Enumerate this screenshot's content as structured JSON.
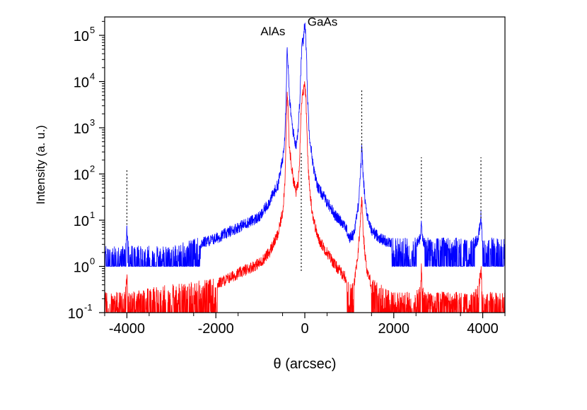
{
  "chart_data": {
    "type": "line",
    "title": "",
    "xlabel": "θ (arcsec)",
    "ylabel": "Intensity (a. u.)",
    "xlim": [
      -4500,
      4500
    ],
    "ylim": [
      0.1,
      250000
    ],
    "yscale": "log",
    "grid": false,
    "legend": "none",
    "x_ticks": [
      {
        "value": -4000,
        "label": "-4000"
      },
      {
        "value": -2000,
        "label": "-2000"
      },
      {
        "value": 0,
        "label": "0"
      },
      {
        "value": 2000,
        "label": "2000"
      },
      {
        "value": 4000,
        "label": "4000"
      }
    ],
    "y_ticks": [
      {
        "value": 0.1,
        "base": "10",
        "exp": "-1"
      },
      {
        "value": 1,
        "base": "10",
        "exp": "0"
      },
      {
        "value": 10,
        "base": "10",
        "exp": "1"
      },
      {
        "value": 100,
        "base": "10",
        "exp": "2"
      },
      {
        "value": 1000,
        "base": "10",
        "exp": "3"
      },
      {
        "value": 10000,
        "base": "10",
        "exp": "4"
      },
      {
        "value": 100000,
        "base": "10",
        "exp": "5"
      }
    ],
    "annotations": [
      {
        "text": "AlAs",
        "x": -400,
        "y": 100000
      },
      {
        "text": "GaAs",
        "x": 0,
        "y": 160000
      }
    ],
    "reference_lines": [
      {
        "x": -4000,
        "y_from": 8,
        "y_to": 130
      },
      {
        "x": -80,
        "y_from": 0.8,
        "y_to": 300
      },
      {
        "x": 1280,
        "y_from": 300,
        "y_to": 6500
      },
      {
        "x": 2620,
        "y_from": 11,
        "y_to": 230
      },
      {
        "x": 3960,
        "y_from": 11,
        "y_to": 230
      }
    ],
    "series": [
      {
        "color": "#0000ff",
        "baseline": 1,
        "noise_max": 3,
        "x": [
          -4500,
          -4100,
          -4050,
          -4020,
          -4000,
          -3980,
          -3950,
          -3000,
          -2000,
          -1500,
          -1000,
          -800,
          -600,
          -500,
          -450,
          -420,
          -400,
          -380,
          -350,
          -300,
          -250,
          -200,
          -150,
          -120,
          -100,
          -80,
          -60,
          -40,
          -20,
          0,
          20,
          40,
          60,
          100,
          150,
          200,
          300,
          500,
          700,
          900,
          1000,
          1100,
          1200,
          1250,
          1270,
          1280,
          1290,
          1310,
          1350,
          1400,
          1500,
          1700,
          2000,
          2500,
          2600,
          2620,
          2640,
          2700,
          3000,
          3800,
          3900,
          3940,
          3960,
          3980,
          4000,
          4100,
          4500
        ],
        "y": [
          2,
          2,
          2,
          3,
          7,
          3,
          2,
          2,
          4,
          7,
          12,
          25,
          60,
          200,
          700,
          5000,
          50000,
          30000,
          5000,
          1500,
          700,
          400,
          900,
          3000,
          8000,
          30000,
          80000,
          60000,
          120000,
          200000,
          100000,
          30000,
          5000,
          800,
          300,
          120,
          50,
          25,
          12,
          8,
          4,
          5,
          20,
          100,
          200,
          340,
          250,
          100,
          30,
          12,
          6,
          4,
          3,
          3,
          4,
          10,
          4,
          3,
          3,
          3,
          4,
          8,
          12,
          6,
          3,
          3,
          3
        ]
      },
      {
        "color": "#ff0000",
        "baseline": 0.1,
        "noise_max": 0.4,
        "x": [
          -4500,
          -4100,
          -4050,
          -4020,
          -4000,
          -3980,
          -3950,
          -3000,
          -2000,
          -1500,
          -1000,
          -800,
          -600,
          -500,
          -450,
          -420,
          -400,
          -380,
          -350,
          -300,
          -250,
          -200,
          -150,
          -120,
          -100,
          -80,
          -60,
          -40,
          -20,
          0,
          20,
          40,
          60,
          100,
          150,
          200,
          300,
          500,
          700,
          900,
          1000,
          1100,
          1200,
          1250,
          1270,
          1280,
          1290,
          1310,
          1350,
          1400,
          1500,
          1700,
          2000,
          2500,
          2600,
          2620,
          2640,
          2700,
          3000,
          3800,
          3900,
          3940,
          3960,
          3980,
          4000,
          4100,
          4500
        ],
        "y": [
          0.2,
          0.2,
          0.2,
          0.3,
          0.7,
          0.3,
          0.2,
          0.3,
          0.4,
          0.7,
          1.2,
          2,
          5,
          15,
          60,
          700,
          5000,
          3000,
          400,
          150,
          70,
          40,
          60,
          200,
          800,
          3000,
          5000,
          6000,
          7000,
          8000,
          5000,
          1500,
          300,
          60,
          20,
          10,
          4,
          2,
          1,
          0.6,
          0.3,
          0.4,
          2,
          10,
          20,
          30,
          20,
          6,
          2,
          0.8,
          0.4,
          0.3,
          0.2,
          0.2,
          0.3,
          0.9,
          0.3,
          0.2,
          0.2,
          0.2,
          0.3,
          0.6,
          0.9,
          0.4,
          0.2,
          0.2,
          0.2
        ]
      }
    ]
  }
}
